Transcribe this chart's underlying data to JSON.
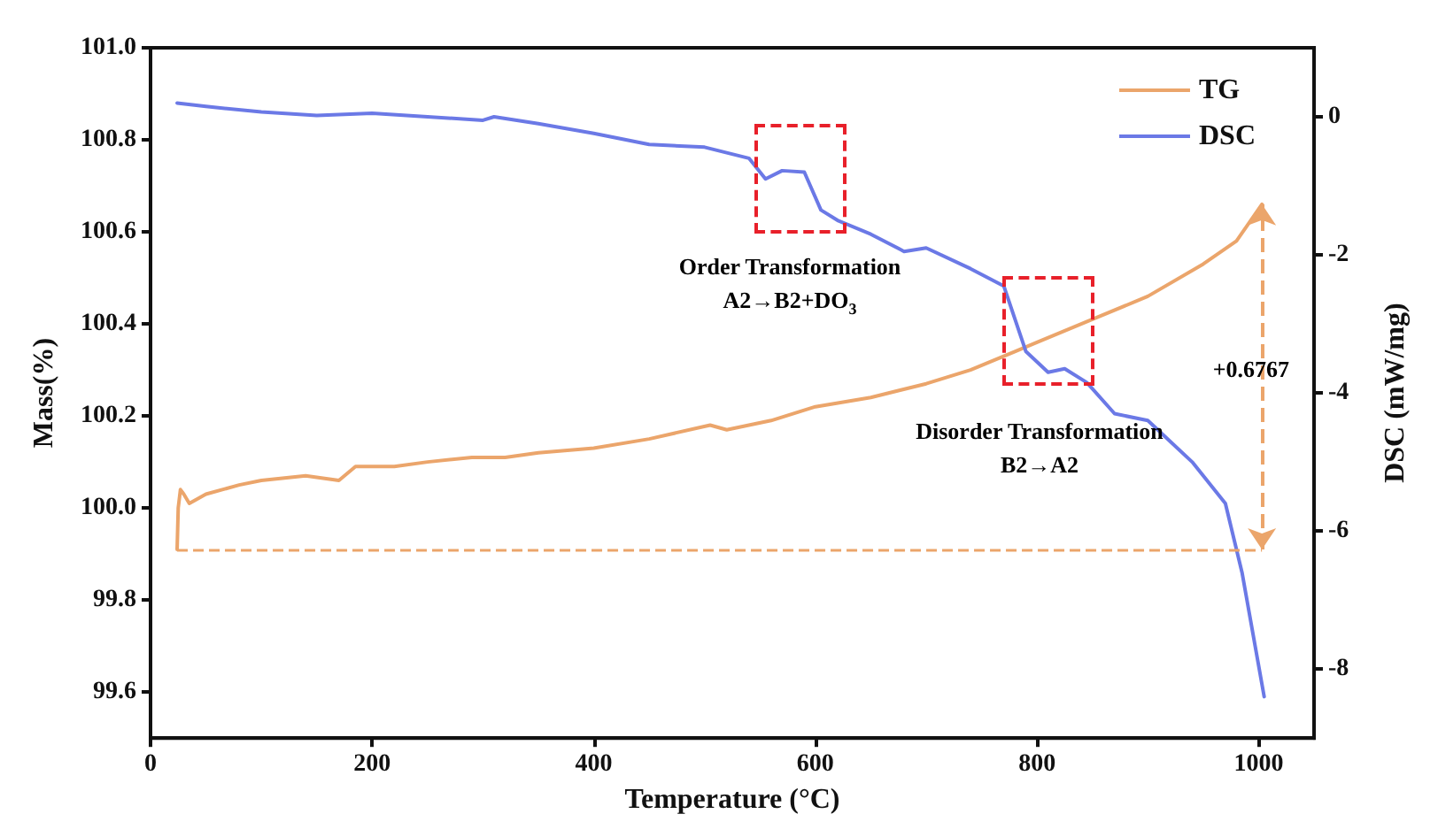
{
  "chart_data": {
    "type": "line",
    "xlabel": "Temperature (°C)",
    "ylabel": "Mass(%)",
    "y2label": "DSC (mW/mg)",
    "xlim": [
      0,
      1050
    ],
    "xticks": [
      0,
      200,
      400,
      600,
      800,
      1000
    ],
    "ylim": [
      99.5,
      101.0
    ],
    "yticks": [
      99.6,
      99.8,
      {
        "value": 100,
        "label": "100.0"
      },
      100.2,
      100.4,
      100.6,
      100.8,
      {
        "value": 101,
        "label": "101.0"
      }
    ],
    "y2lim": [
      -9,
      1
    ],
    "y2ticks": [
      -8,
      -6,
      -4,
      -2,
      0
    ],
    "grid": false,
    "legend": "top right",
    "line_style": "solid",
    "marker": "none",
    "series": [
      {
        "name": "TG",
        "color": "#eba56b",
        "x": [
          24,
          25,
          27,
          30,
          35,
          50,
          80,
          100,
          140,
          170,
          185,
          220,
          250,
          290,
          320,
          350,
          400,
          450,
          505,
          520,
          560,
          600,
          650,
          700,
          740,
          780,
          800,
          850,
          900,
          950,
          980,
          1003
        ],
        "values": [
          99.91,
          100.0,
          100.04,
          100.03,
          100.01,
          100.03,
          100.05,
          100.06,
          100.07,
          100.06,
          100.09,
          100.09,
          100.1,
          100.11,
          100.11,
          100.12,
          100.13,
          100.15,
          100.18,
          100.17,
          100.19,
          100.22,
          100.24,
          100.27,
          100.3,
          100.34,
          100.36,
          100.41,
          100.46,
          100.53,
          100.58,
          100.66
        ]
      },
      {
        "name": "DSC",
        "color": "#6b79e6",
        "axis": "y2",
        "x": [
          24,
          50,
          100,
          150,
          200,
          250,
          300,
          310,
          350,
          400,
          450,
          500,
          540,
          555,
          570,
          590,
          605,
          620,
          650,
          680,
          700,
          740,
          770,
          790,
          810,
          825,
          845,
          870,
          900,
          940,
          970,
          985,
          1005
        ],
        "values": [
          0.2,
          0.15,
          0.07,
          0.02,
          0.05,
          0.0,
          -0.05,
          0.0,
          -0.1,
          -0.24,
          -0.4,
          -0.44,
          -0.6,
          -0.9,
          -0.78,
          -0.8,
          -1.35,
          -1.5,
          -1.7,
          -1.95,
          -1.9,
          -2.2,
          -2.45,
          -3.4,
          -3.7,
          -3.65,
          -3.85,
          -4.3,
          -4.4,
          -5.0,
          -5.6,
          -6.6,
          -8.4
        ]
      }
    ],
    "ref_lines": [
      {
        "axis": "y",
        "value": 99.91,
        "color": "#eba56b",
        "line_style": "dashed"
      }
    ],
    "annotations": [
      "Order Transformation\nA2→B2+DO$_{3}$",
      "Disorder Transformation\nB2→A2",
      "+0.6767"
    ]
  }
}
